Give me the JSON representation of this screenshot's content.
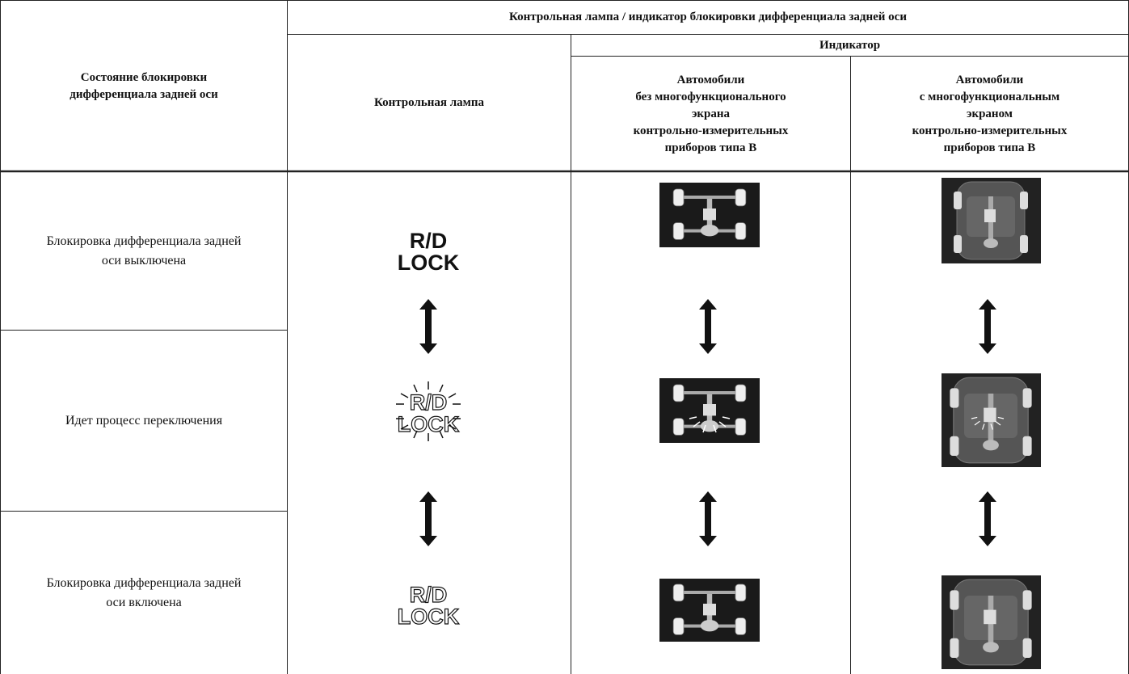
{
  "header": {
    "title": "Контрольная лампа / индикатор блокировки дифференциала задней оси",
    "state_column": [
      "Состояние блокировки",
      "дифференциала задней оси"
    ],
    "lamp_column": "Контрольная лампа",
    "indicator": "Индикатор",
    "without_screen": [
      "Автомобили",
      "без многофункционального",
      "экрана",
      "контрольно-измерительных",
      "приборов типа B"
    ],
    "with_screen": [
      "Автомобили",
      "с многофункциональным",
      "экраном",
      "контрольно-измерительных",
      "приборов типа B"
    ]
  },
  "rows": [
    {
      "state": [
        "Блокировка дифференциала задней",
        "оси выключена"
      ],
      "lamp": [
        "R/D",
        "LOCK"
      ]
    },
    {
      "state": [
        "Идет процесс переключения"
      ],
      "lamp": [
        "R/D",
        "LOCK"
      ]
    },
    {
      "state": [
        "Блокировка дифференциала задней",
        "оси включена"
      ],
      "lamp": [
        "R/D",
        "LOCK"
      ]
    }
  ]
}
